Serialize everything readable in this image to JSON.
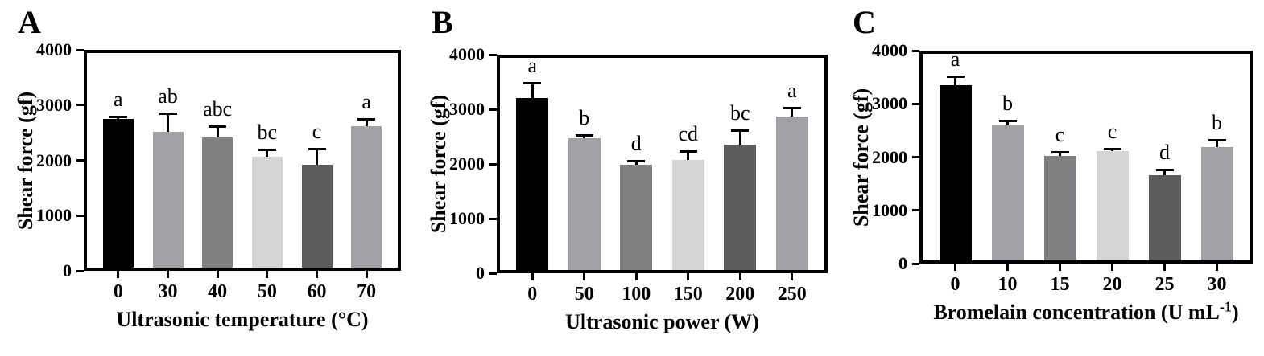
{
  "figure_title": "",
  "chart_data": [
    {
      "type": "bar",
      "panel_label": "A",
      "ylabel": "Shear force (gf)",
      "xlabel": "Ultrasonic temperature (°C)",
      "xlabel_sup": "",
      "xlabel_tail": "",
      "ylim": [
        0,
        4000
      ],
      "yticks": [
        "0",
        "1000",
        "2000",
        "3000",
        "4000"
      ],
      "categories": [
        "0",
        "30",
        "40",
        "50",
        "60",
        "70"
      ],
      "values": [
        2750,
        2520,
        2410,
        2060,
        1925,
        2620
      ],
      "errors_upper": [
        40,
        330,
        210,
        135,
        280,
        130
      ],
      "sig_letters": [
        "a",
        "ab",
        "abc",
        "bc",
        "c",
        "a"
      ],
      "bar_colors": [
        "#000000",
        "#a1a1a5",
        "#808083",
        "#d5d5d6",
        "#5c5c5e",
        "#a1a1a5"
      ],
      "grid": false,
      "legend": "none"
    },
    {
      "type": "bar",
      "panel_label": "B",
      "ylabel": "Shear force (gf)",
      "xlabel": "Ultrasonic power (W)",
      "xlabel_sup": "",
      "xlabel_tail": "",
      "ylim": [
        0,
        4000
      ],
      "yticks": [
        "0",
        "1000",
        "2000",
        "3000",
        "4000"
      ],
      "categories": [
        "0",
        "50",
        "100",
        "150",
        "200",
        "250"
      ],
      "values": [
        3200,
        2465,
        1980,
        2070,
        2350,
        2870
      ],
      "errors_upper": [
        290,
        60,
        75,
        165,
        265,
        160
      ],
      "sig_letters": [
        "a",
        "b",
        "d",
        "cd",
        "bc",
        "a"
      ],
      "bar_colors": [
        "#000000",
        "#a1a1a5",
        "#808083",
        "#d5d5d6",
        "#5c5c5e",
        "#a1a1a5"
      ],
      "grid": false,
      "legend": "none"
    },
    {
      "type": "bar",
      "panel_label": "C",
      "ylabel": "Shear force (gf)",
      "xlabel": "Bromelain concentration (U mL",
      "xlabel_sup": "-1",
      "xlabel_tail": ")",
      "ylim": [
        0,
        4000
      ],
      "yticks": [
        "0",
        "1000",
        "2000",
        "3000",
        "4000"
      ],
      "categories": [
        "0",
        "10",
        "15",
        "20",
        "25",
        "30"
      ],
      "values": [
        3350,
        2600,
        2030,
        2110,
        1660,
        2190
      ],
      "errors_upper": [
        170,
        90,
        75,
        50,
        110,
        140
      ],
      "sig_letters": [
        "a",
        "b",
        "c",
        "c",
        "d",
        "b"
      ],
      "bar_colors": [
        "#000000",
        "#a1a1a5",
        "#808083",
        "#d5d5d6",
        "#5c5c5e",
        "#a1a1a5"
      ],
      "grid": false,
      "legend": "none"
    }
  ]
}
